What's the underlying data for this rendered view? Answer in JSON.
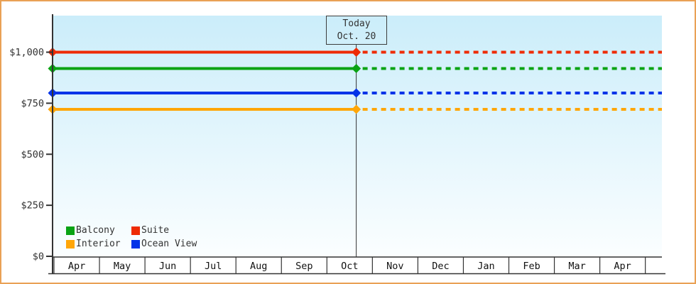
{
  "page": {
    "border_color": "#E9A155",
    "background": "#FFFFFF",
    "plot_background_top": "#CBEDFA",
    "plot_background_bottom": "#FBFEFF",
    "axis_color": "#333333",
    "text_color": "#333333"
  },
  "legend": {
    "items": [
      {
        "label": "Balcony",
        "color": "#09A314"
      },
      {
        "label": "Suite",
        "color": "#EE2B04"
      },
      {
        "label": "Interior",
        "color": "#FFA608"
      },
      {
        "label": "Ocean View",
        "color": "#0433E8"
      }
    ]
  },
  "chart_data": {
    "type": "line",
    "x_categories": [
      "Apr",
      "May",
      "Jun",
      "Jul",
      "Aug",
      "Sep",
      "Oct",
      "Nov",
      "Dec",
      "Jan",
      "Feb",
      "Mar",
      "Apr"
    ],
    "y_tick_values": [
      0,
      250,
      500,
      750,
      1000
    ],
    "y_tick_labels": [
      "$0",
      "$250",
      "$500",
      "$750",
      "$1,000"
    ],
    "ylim": [
      0,
      1180
    ],
    "grid": false,
    "legend_position": "bottom-left-inside",
    "today": {
      "label": "Today",
      "date": "Oct. 20",
      "month_index": 6,
      "day_fraction": 0.645
    },
    "series": [
      {
        "name": "Suite",
        "color": "#EE2B04",
        "value": 1000,
        "constant": true
      },
      {
        "name": "Balcony",
        "color": "#09A314",
        "value": 920,
        "constant": true
      },
      {
        "name": "Ocean View",
        "color": "#0433E8",
        "value": 800,
        "constant": true
      },
      {
        "name": "Interior",
        "color": "#FFA608",
        "value": 720,
        "constant": true
      }
    ],
    "style_notes": {
      "before_today": "solid",
      "after_today": "dashed",
      "marker": "diamond"
    }
  }
}
